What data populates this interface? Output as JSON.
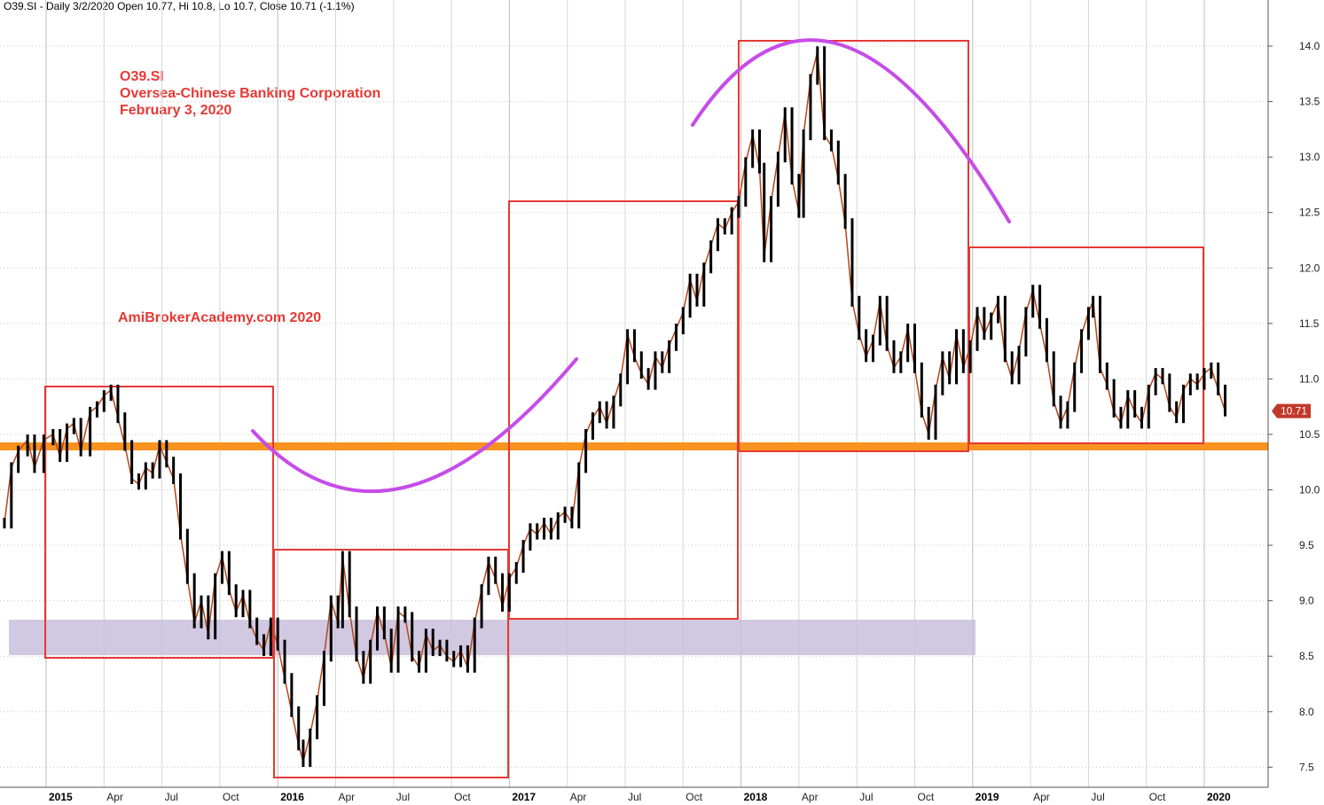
{
  "header": "O39.SI - Daily 3/2/2020 Open 10.77, Hi 10.8, Lo 10.7, Close 10.71 (-1.1%)",
  "annotations": {
    "ticker": "O39.SI",
    "company": "Oversea-Chinese Banking Corporation",
    "date": "February 3, 2020",
    "watermark": "AmiBrokerAcademy.com   2020"
  },
  "last_price_label": "10.71",
  "colors": {
    "box": "#e53935",
    "arc": "#c64ce8",
    "support_line": "#f7931e",
    "support_zone": "#c9bedc",
    "price_label_bg": "#c0392b",
    "candle": "#000000",
    "wick": "#b5471b"
  },
  "chart_data": {
    "type": "line",
    "ylim": [
      7.3,
      14.3
    ],
    "y_ticks": [
      "7.5",
      "8.0",
      "8.5",
      "9.0",
      "9.5",
      "10.0",
      "10.5",
      "11.0",
      "11.5",
      "12.0",
      "12.5",
      "13.0",
      "13.5",
      "14.0"
    ],
    "x_ticks": [
      {
        "label": "2015",
        "t": 2015.0,
        "year": true
      },
      {
        "label": "Apr",
        "t": 2015.25
      },
      {
        "label": "Jul",
        "t": 2015.5
      },
      {
        "label": "Oct",
        "t": 2015.75
      },
      {
        "label": "2016",
        "t": 2016.0,
        "year": true
      },
      {
        "label": "Apr",
        "t": 2016.25
      },
      {
        "label": "Jul",
        "t": 2016.5
      },
      {
        "label": "Oct",
        "t": 2016.75
      },
      {
        "label": "2017",
        "t": 2017.0,
        "year": true
      },
      {
        "label": "Apr",
        "t": 2017.25
      },
      {
        "label": "Jul",
        "t": 2017.5
      },
      {
        "label": "Oct",
        "t": 2017.75
      },
      {
        "label": "2018",
        "t": 2018.0,
        "year": true
      },
      {
        "label": "Apr",
        "t": 2018.25
      },
      {
        "label": "Jul",
        "t": 2018.5
      },
      {
        "label": "Oct",
        "t": 2018.75
      },
      {
        "label": "2019",
        "t": 2019.0,
        "year": true
      },
      {
        "label": "Apr",
        "t": 2019.25
      },
      {
        "label": "Jul",
        "t": 2019.5
      },
      {
        "label": "Oct",
        "t": 2019.75
      },
      {
        "label": "2020",
        "t": 2020.0,
        "year": true
      }
    ],
    "series": [
      {
        "values": [
          [
            2014.82,
            9.7
          ],
          [
            2014.85,
            10.2
          ],
          [
            2014.88,
            10.35
          ],
          [
            2014.92,
            10.45
          ],
          [
            2014.95,
            10.2
          ],
          [
            2014.99,
            10.45
          ],
          [
            2015.03,
            10.5
          ],
          [
            2015.06,
            10.3
          ],
          [
            2015.09,
            10.55
          ],
          [
            2015.12,
            10.6
          ],
          [
            2015.15,
            10.35
          ],
          [
            2015.19,
            10.7
          ],
          [
            2015.22,
            10.75
          ],
          [
            2015.25,
            10.85
          ],
          [
            2015.28,
            10.9
          ],
          [
            2015.31,
            10.65
          ],
          [
            2015.34,
            10.4
          ],
          [
            2015.37,
            10.1
          ],
          [
            2015.4,
            10.05
          ],
          [
            2015.43,
            10.2
          ],
          [
            2015.46,
            10.15
          ],
          [
            2015.49,
            10.4
          ],
          [
            2015.52,
            10.25
          ],
          [
            2015.55,
            10.1
          ],
          [
            2015.58,
            9.6
          ],
          [
            2015.61,
            9.2
          ],
          [
            2015.64,
            8.8
          ],
          [
            2015.67,
            9.0
          ],
          [
            2015.7,
            8.7
          ],
          [
            2015.73,
            9.2
          ],
          [
            2015.76,
            9.4
          ],
          [
            2015.79,
            9.1
          ],
          [
            2015.82,
            8.9
          ],
          [
            2015.85,
            9.05
          ],
          [
            2015.88,
            8.8
          ],
          [
            2015.91,
            8.65
          ],
          [
            2015.94,
            8.55
          ],
          [
            2015.97,
            8.8
          ],
          [
            2016.0,
            8.6
          ],
          [
            2016.03,
            8.3
          ],
          [
            2016.06,
            8.0
          ],
          [
            2016.09,
            7.7
          ],
          [
            2016.11,
            7.55
          ],
          [
            2016.14,
            7.8
          ],
          [
            2016.17,
            8.1
          ],
          [
            2016.2,
            8.5
          ],
          [
            2016.23,
            9.0
          ],
          [
            2016.26,
            8.8
          ],
          [
            2016.28,
            9.4
          ],
          [
            2016.31,
            8.9
          ],
          [
            2016.34,
            8.5
          ],
          [
            2016.37,
            8.3
          ],
          [
            2016.4,
            8.6
          ],
          [
            2016.43,
            8.9
          ],
          [
            2016.46,
            8.7
          ],
          [
            2016.49,
            8.4
          ],
          [
            2016.52,
            8.9
          ],
          [
            2016.55,
            8.85
          ],
          [
            2016.58,
            8.5
          ],
          [
            2016.61,
            8.4
          ],
          [
            2016.64,
            8.7
          ],
          [
            2016.67,
            8.55
          ],
          [
            2016.7,
            8.6
          ],
          [
            2016.73,
            8.5
          ],
          [
            2016.76,
            8.45
          ],
          [
            2016.79,
            8.55
          ],
          [
            2016.82,
            8.4
          ],
          [
            2016.85,
            8.8
          ],
          [
            2016.88,
            9.1
          ],
          [
            2016.91,
            9.35
          ],
          [
            2016.94,
            9.2
          ],
          [
            2016.97,
            8.95
          ],
          [
            2017.0,
            9.2
          ],
          [
            2017.03,
            9.3
          ],
          [
            2017.06,
            9.5
          ],
          [
            2017.09,
            9.65
          ],
          [
            2017.12,
            9.6
          ],
          [
            2017.15,
            9.7
          ],
          [
            2017.18,
            9.6
          ],
          [
            2017.21,
            9.75
          ],
          [
            2017.24,
            9.8
          ],
          [
            2017.27,
            9.7
          ],
          [
            2017.3,
            10.2
          ],
          [
            2017.33,
            10.5
          ],
          [
            2017.36,
            10.65
          ],
          [
            2017.39,
            10.75
          ],
          [
            2017.42,
            10.6
          ],
          [
            2017.45,
            10.8
          ],
          [
            2017.48,
            11.0
          ],
          [
            2017.51,
            11.4
          ],
          [
            2017.54,
            11.2
          ],
          [
            2017.57,
            11.05
          ],
          [
            2017.6,
            10.95
          ],
          [
            2017.63,
            11.2
          ],
          [
            2017.66,
            11.1
          ],
          [
            2017.69,
            11.3
          ],
          [
            2017.72,
            11.45
          ],
          [
            2017.75,
            11.6
          ],
          [
            2017.78,
            11.9
          ],
          [
            2017.81,
            11.7
          ],
          [
            2017.84,
            12.0
          ],
          [
            2017.87,
            12.2
          ],
          [
            2017.9,
            12.4
          ],
          [
            2017.93,
            12.35
          ],
          [
            2017.96,
            12.5
          ],
          [
            2017.99,
            12.6
          ],
          [
            2018.02,
            12.95
          ],
          [
            2018.05,
            13.2
          ],
          [
            2018.08,
            12.9
          ],
          [
            2018.1,
            12.1
          ],
          [
            2018.13,
            12.6
          ],
          [
            2018.16,
            13.0
          ],
          [
            2018.19,
            13.4
          ],
          [
            2018.22,
            12.8
          ],
          [
            2018.25,
            12.5
          ],
          [
            2018.27,
            13.2
          ],
          [
            2018.3,
            13.7
          ],
          [
            2018.33,
            13.95
          ],
          [
            2018.36,
            13.2
          ],
          [
            2018.39,
            13.1
          ],
          [
            2018.42,
            12.8
          ],
          [
            2018.45,
            12.4
          ],
          [
            2018.48,
            11.7
          ],
          [
            2018.51,
            11.4
          ],
          [
            2018.54,
            11.2
          ],
          [
            2018.57,
            11.35
          ],
          [
            2018.6,
            11.7
          ],
          [
            2018.63,
            11.3
          ],
          [
            2018.66,
            11.1
          ],
          [
            2018.69,
            11.2
          ],
          [
            2018.72,
            11.45
          ],
          [
            2018.75,
            11.1
          ],
          [
            2018.78,
            10.7
          ],
          [
            2018.81,
            10.5
          ],
          [
            2018.84,
            10.9
          ],
          [
            2018.87,
            11.2
          ],
          [
            2018.9,
            11.0
          ],
          [
            2018.93,
            11.4
          ],
          [
            2018.96,
            11.1
          ],
          [
            2018.99,
            11.3
          ],
          [
            2019.02,
            11.6
          ],
          [
            2019.05,
            11.4
          ],
          [
            2019.08,
            11.55
          ],
          [
            2019.11,
            11.7
          ],
          [
            2019.14,
            11.2
          ],
          [
            2019.17,
            11.0
          ],
          [
            2019.2,
            11.25
          ],
          [
            2019.23,
            11.6
          ],
          [
            2019.26,
            11.8
          ],
          [
            2019.29,
            11.5
          ],
          [
            2019.32,
            11.2
          ],
          [
            2019.35,
            10.8
          ],
          [
            2019.38,
            10.6
          ],
          [
            2019.41,
            10.75
          ],
          [
            2019.44,
            11.1
          ],
          [
            2019.47,
            11.4
          ],
          [
            2019.5,
            11.6
          ],
          [
            2019.52,
            11.7
          ],
          [
            2019.55,
            11.1
          ],
          [
            2019.58,
            10.95
          ],
          [
            2019.61,
            10.7
          ],
          [
            2019.64,
            10.6
          ],
          [
            2019.67,
            10.85
          ],
          [
            2019.7,
            10.7
          ],
          [
            2019.73,
            10.6
          ],
          [
            2019.76,
            10.9
          ],
          [
            2019.79,
            11.05
          ],
          [
            2019.82,
            11.0
          ],
          [
            2019.85,
            10.75
          ],
          [
            2019.88,
            10.65
          ],
          [
            2019.91,
            10.9
          ],
          [
            2019.94,
            11.0
          ],
          [
            2019.97,
            10.95
          ],
          [
            2020.0,
            11.05
          ],
          [
            2020.03,
            11.1
          ],
          [
            2020.06,
            10.9
          ],
          [
            2020.09,
            10.71
          ]
        ]
      }
    ]
  }
}
